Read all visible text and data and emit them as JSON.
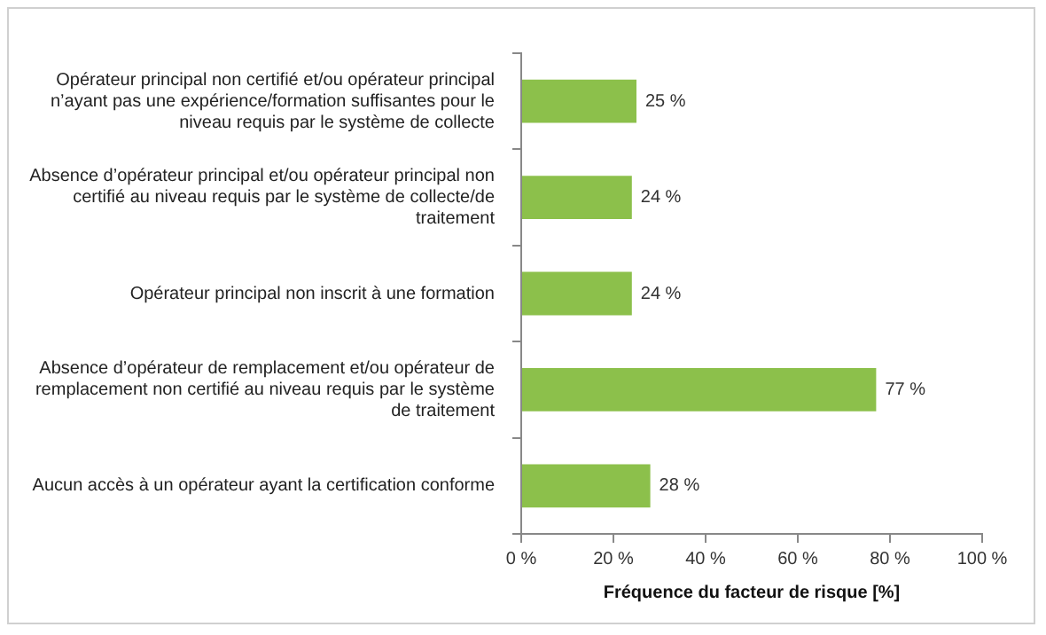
{
  "chart_data": {
    "type": "bar",
    "orientation": "horizontal",
    "xlabel": "Fréquence du facteur de risque [%]",
    "categories": [
      "Opérateur principal non certifié et/ou opérateur principal n’ayant pas une expérience/formation suffisantes pour le niveau requis par le système de collecte",
      "Absence d’opérateur principal et/ou opérateur principal non certifié au niveau requis par le système de collecte/de traitement",
      "Opérateur principal non inscrit à une formation",
      "Absence d’opérateur de remplacement et/ou opérateur de remplacement non certifié au niveau requis par le système de traitement",
      "Aucun accès à un opérateur ayant la certification conforme"
    ],
    "values": [
      25,
      24,
      24,
      77,
      28
    ],
    "value_labels": [
      "25 %",
      "24 %",
      "24 %",
      "77 %",
      "28 %"
    ],
    "color": "#8cc04b",
    "xlim": [
      0,
      100
    ],
    "xticks": [
      {
        "value": 0,
        "label": "0 %"
      },
      {
        "value": 20,
        "label": "20 %"
      },
      {
        "value": 40,
        "label": "40 %"
      },
      {
        "value": 60,
        "label": "60 %"
      },
      {
        "value": 80,
        "label": "80 %"
      },
      {
        "value": 100,
        "label": "100 %"
      }
    ],
    "grid": false,
    "legend": false
  }
}
